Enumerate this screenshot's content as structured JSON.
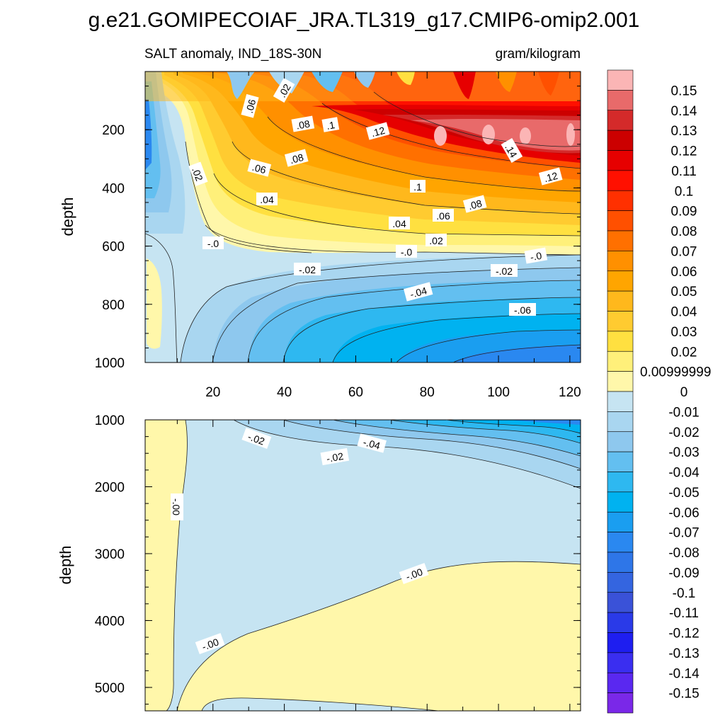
{
  "chart_data": {
    "type": "contour",
    "title": "g.e21.GOMIPECOIAF_JRA.TL319_g17.CMIP6-omip2.001",
    "subtitle_left": "SALT anomaly, IND_18S-30N",
    "subtitle_right": "gram/kilogram",
    "xlabel": "",
    "ylabel": "depth",
    "x_range": [
      1,
      123
    ],
    "x_ticks": [
      "20",
      "40",
      "60",
      "80",
      "100",
      "120"
    ],
    "panels": [
      {
        "name": "upper",
        "ylim": [
          0,
          1000
        ],
        "y_ticks": [
          "200",
          "400",
          "600",
          "800",
          "1000"
        ],
        "contour_labels": [
          ".02",
          ".06",
          ".08",
          ".1",
          ".12",
          ".14",
          ".12",
          ".02",
          ".06",
          ".08",
          ".04",
          ".1",
          ".08",
          ".06",
          ".04",
          ".02",
          "-.0",
          "-.0",
          "-.0",
          "-.02",
          "-.02",
          "-.04",
          "-.06"
        ]
      },
      {
        "name": "lower",
        "ylim": [
          1000,
          5350
        ],
        "y_ticks": [
          "1000",
          "2000",
          "3000",
          "4000",
          "5000"
        ],
        "contour_labels": [
          "-.02",
          "-.04",
          "-.02",
          "-.00",
          "-.00",
          "-.00"
        ]
      }
    ],
    "colorbar": {
      "labels": [
        "0.15",
        "0.14",
        "0.13",
        "0.12",
        "0.11",
        "0.1",
        "0.09",
        "0.08",
        "0.07",
        "0.06",
        "0.05",
        "0.04",
        "0.03",
        "0.02",
        "0.00999999",
        "0",
        "-0.01",
        "-0.02",
        "-0.03",
        "-0.04",
        "-0.05",
        "-0.06",
        "-0.07",
        "-0.08",
        "-0.09",
        "-0.1",
        "-0.11",
        "-0.12",
        "-0.13",
        "-0.14",
        "-0.15"
      ],
      "colors": [
        "#fbb5b5",
        "#e86a6a",
        "#d42a2a",
        "#cc0000",
        "#e60000",
        "#ff1000",
        "#ff3000",
        "#ff5000",
        "#ff7000",
        "#ff9000",
        "#ffa500",
        "#ffb81c",
        "#ffcb30",
        "#ffe040",
        "#fff07a",
        "#fff7aa",
        "#c6e4f2",
        "#a9d6f0",
        "#8ec8ee",
        "#63bff0",
        "#2eb8f0",
        "#00b2f0",
        "#1a9ef0",
        "#2a88f0",
        "#2e76e8",
        "#3465e0",
        "#3a52d8",
        "#2a3ae8",
        "#1e1ef0",
        "#3a2ef0",
        "#5a28f0",
        "#7a28e8"
      ]
    }
  }
}
